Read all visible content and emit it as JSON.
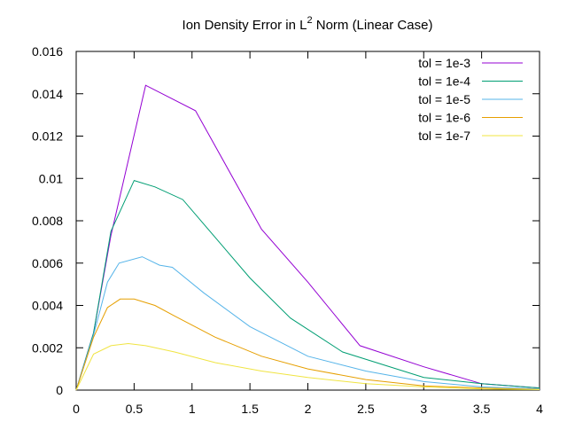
{
  "chart_data": {
    "type": "line",
    "title": "Ion Density Error in L",
    "title_superscript": "2",
    "title_suffix": " Norm (Linear Case)",
    "xlim": [
      0,
      4
    ],
    "ylim": [
      0,
      0.016
    ],
    "xticks": [
      0,
      0.5,
      1,
      1.5,
      2,
      2.5,
      3,
      3.5,
      4
    ],
    "xtick_labels": [
      "0",
      "0.5",
      "1",
      "1.5",
      "2",
      "2.5",
      "3",
      "3.5",
      "4"
    ],
    "yticks": [
      0,
      0.002,
      0.004,
      0.006,
      0.008,
      0.01,
      0.012,
      0.014,
      0.016
    ],
    "ytick_labels": [
      "0",
      "0.002",
      "0.004",
      "0.006",
      "0.008",
      "0.01",
      "0.012",
      "0.014",
      "0.016"
    ],
    "grid": false,
    "legend_position": "top-right",
    "series": [
      {
        "name": "tol = 1e-3",
        "color": "#9400d3",
        "points": [
          [
            0,
            0
          ],
          [
            0.15,
            0.0027
          ],
          [
            0.3,
            0.0073
          ],
          [
            0.6,
            0.0144
          ],
          [
            1.03,
            0.0132
          ],
          [
            1.6,
            0.0076
          ],
          [
            2.0,
            0.0051
          ],
          [
            2.45,
            0.0021
          ],
          [
            3.0,
            0.0011
          ],
          [
            3.5,
            0.0003
          ],
          [
            4.0,
            0.0001
          ]
        ]
      },
      {
        "name": "tol = 1e-4",
        "color": "#009e73",
        "points": [
          [
            0,
            0
          ],
          [
            0.15,
            0.0027
          ],
          [
            0.3,
            0.0075
          ],
          [
            0.5,
            0.0099
          ],
          [
            0.68,
            0.0096
          ],
          [
            0.92,
            0.009
          ],
          [
            1.5,
            0.0053
          ],
          [
            1.85,
            0.0034
          ],
          [
            2.3,
            0.0018
          ],
          [
            3.0,
            0.0006
          ],
          [
            3.5,
            0.0003
          ],
          [
            4.0,
            0.0001
          ]
        ]
      },
      {
        "name": "tol = 1e-5",
        "color": "#56b4e9",
        "points": [
          [
            0,
            0
          ],
          [
            0.15,
            0.0026
          ],
          [
            0.27,
            0.0051
          ],
          [
            0.37,
            0.006
          ],
          [
            0.57,
            0.0063
          ],
          [
            0.72,
            0.0059
          ],
          [
            0.83,
            0.0058
          ],
          [
            1.1,
            0.0046
          ],
          [
            1.5,
            0.003
          ],
          [
            2.0,
            0.0016
          ],
          [
            2.5,
            0.0009
          ],
          [
            3.0,
            0.0004
          ],
          [
            3.5,
            0.00015
          ],
          [
            4.0,
            5e-05
          ]
        ]
      },
      {
        "name": "tol = 1e-6",
        "color": "#e69f00",
        "points": [
          [
            0,
            0
          ],
          [
            0.15,
            0.0025
          ],
          [
            0.27,
            0.0039
          ],
          [
            0.38,
            0.0043
          ],
          [
            0.5,
            0.0043
          ],
          [
            0.68,
            0.004
          ],
          [
            0.85,
            0.0035
          ],
          [
            1.2,
            0.0025
          ],
          [
            1.6,
            0.0016
          ],
          [
            2.0,
            0.001
          ],
          [
            2.5,
            0.0005
          ],
          [
            3.0,
            0.0002
          ],
          [
            3.5,
            0.0001
          ],
          [
            4.0,
            3e-05
          ]
        ]
      },
      {
        "name": "tol = 1e-7",
        "color": "#f0e442",
        "points": [
          [
            0,
            0
          ],
          [
            0.15,
            0.0017
          ],
          [
            0.3,
            0.0021
          ],
          [
            0.45,
            0.0022
          ],
          [
            0.6,
            0.0021
          ],
          [
            0.85,
            0.0018
          ],
          [
            1.2,
            0.0013
          ],
          [
            1.6,
            0.0009
          ],
          [
            2.0,
            0.0006
          ],
          [
            2.5,
            0.0003
          ],
          [
            3.0,
            0.00015
          ],
          [
            3.5,
            5e-05
          ],
          [
            4.0,
            2e-05
          ]
        ]
      }
    ]
  }
}
